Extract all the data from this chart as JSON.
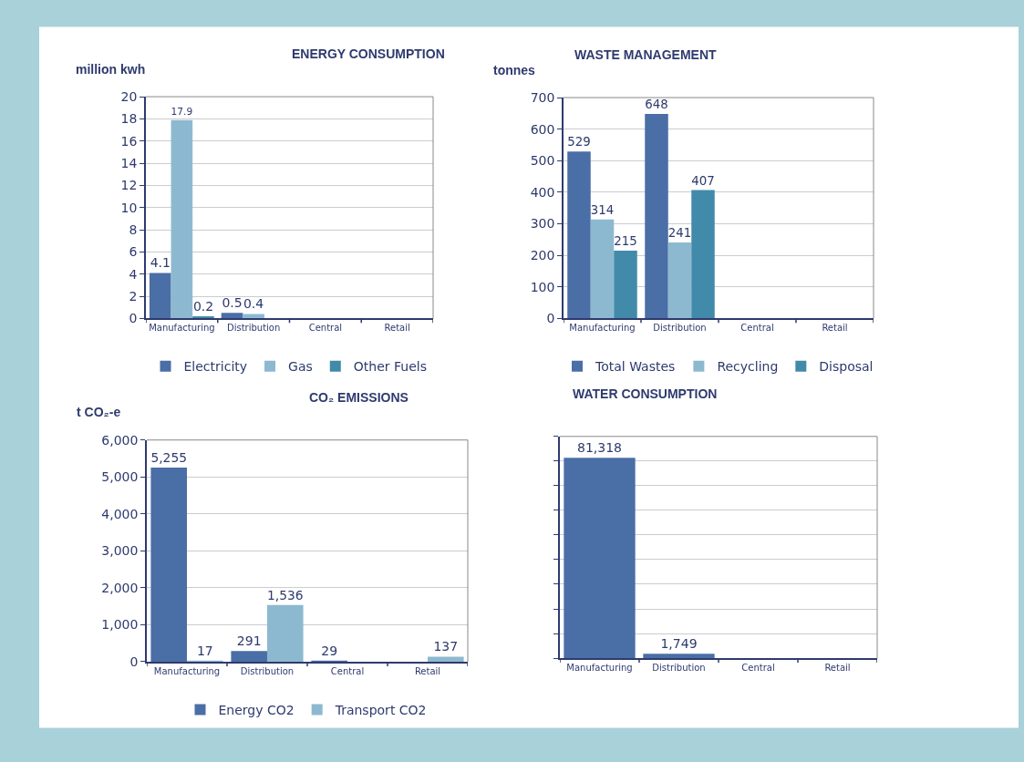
{
  "chart_data": [
    {
      "type": "bar",
      "title": "ENERGY CONSUMPTION",
      "ylabel": "million kwh",
      "categories": [
        "Manufacturing",
        "Distribution",
        "Central",
        "Retail"
      ],
      "series": [
        {
          "name": "Electricity",
          "color": "#4a6ea6",
          "values": [
            4.1,
            0.5,
            null,
            null
          ],
          "value_labels": [
            "4.1",
            "0.5",
            null,
            null
          ]
        },
        {
          "name": "Gas",
          "color": "#8db9d0",
          "values": [
            17.9,
            0.4,
            null,
            null
          ],
          "value_labels": [
            "17.9",
            "0.4",
            null,
            null
          ]
        },
        {
          "name": "Other Fuels",
          "color": "#428aaa",
          "values": [
            0.2,
            null,
            null,
            null
          ],
          "value_labels": [
            "0.2",
            null,
            null,
            null
          ]
        }
      ],
      "ylim": [
        0,
        20
      ],
      "yticks": [
        0,
        2,
        4,
        6,
        8,
        10,
        12,
        14,
        16,
        18,
        20
      ],
      "grid": "y",
      "legend": "bottom"
    },
    {
      "type": "bar",
      "title": "WASTE MANAGEMENT",
      "ylabel": "tonnes",
      "categories": [
        "Manufacturing",
        "Distribution",
        "Central",
        "Retail"
      ],
      "series": [
        {
          "name": "Total Wastes",
          "color": "#4a6ea6",
          "values": [
            529,
            648,
            null,
            null
          ],
          "value_labels": [
            "529",
            "648",
            null,
            null
          ]
        },
        {
          "name": "Recycling",
          "color": "#8db9d0",
          "values": [
            314,
            241,
            null,
            null
          ],
          "value_labels": [
            "314",
            "241",
            null,
            null
          ]
        },
        {
          "name": "Disposal",
          "color": "#428aaa",
          "values": [
            215,
            407,
            null,
            null
          ],
          "value_labels": [
            "215",
            "407",
            null,
            null
          ]
        }
      ],
      "ylim": [
        0,
        700
      ],
      "yticks": [
        0,
        100,
        200,
        300,
        400,
        500,
        600,
        700
      ],
      "grid": "y",
      "legend": "bottom"
    },
    {
      "type": "bar",
      "title": "CO₂ EMISSIONS",
      "ylabel": "t CO₂-e",
      "categories": [
        "Manufacturing",
        "Distribution",
        "Central",
        "Retail"
      ],
      "series": [
        {
          "name": "Energy CO2",
          "color": "#4a6ea6",
          "values": [
            5255,
            291,
            29,
            null
          ],
          "value_labels": [
            "5,255",
            "291",
            "29",
            null
          ]
        },
        {
          "name": "Transport CO2",
          "color": "#8db9d0",
          "values": [
            17,
            1536,
            null,
            137
          ],
          "value_labels": [
            "17",
            "1,536",
            null,
            "137"
          ]
        }
      ],
      "ylim": [
        0,
        6000
      ],
      "yticks": [
        {
          "value": 0,
          "label": "0"
        },
        {
          "value": 1000,
          "label": "1,000"
        },
        {
          "value": 2000,
          "label": "2,000"
        },
        {
          "value": 3000,
          "label": "3,000"
        },
        {
          "value": 4000,
          "label": "4,000"
        },
        {
          "value": 5000,
          "label": "5,000"
        },
        {
          "value": 6000,
          "label": "6,000"
        }
      ],
      "grid": "y",
      "legend": "bottom"
    },
    {
      "type": "bar",
      "title": "WATER CONSUMPTION",
      "categories": [
        "Manufacturing",
        "Distribution",
        "Central",
        "Retail"
      ],
      "series": [
        {
          "color": "#4a6ea6",
          "values": [
            81318,
            1749,
            null,
            null
          ],
          "value_labels": [
            "81,318",
            "1,749",
            null,
            null
          ]
        }
      ],
      "ylim": [
        0,
        90000
      ],
      "yticks": [
        {
          "value": 0,
          "label": null
        },
        {
          "value": 10000,
          "label": null
        },
        {
          "value": 20000,
          "label": null
        },
        {
          "value": 30000,
          "label": null
        },
        {
          "value": 40000,
          "label": null
        },
        {
          "value": 50000,
          "label": null
        },
        {
          "value": 60000,
          "label": null
        },
        {
          "value": 70000,
          "label": null
        },
        {
          "value": 80000,
          "label": null
        },
        {
          "value": 90000,
          "label": null
        }
      ],
      "grid": "y",
      "tick_labels": "x",
      "legend": false
    }
  ]
}
